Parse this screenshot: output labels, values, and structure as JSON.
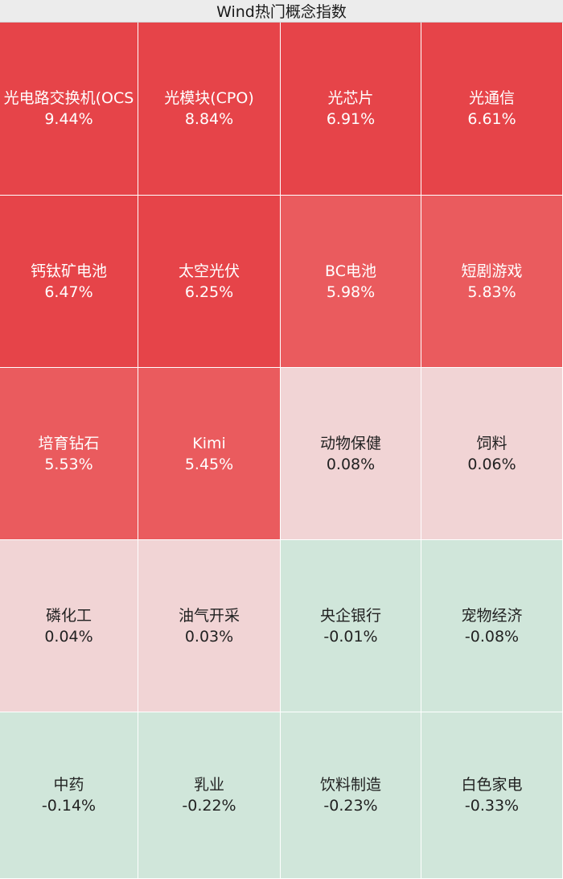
{
  "chart_data": {
    "type": "heatmap",
    "title": "Wind热门概念指数",
    "columns": 4,
    "cells": [
      {
        "name": "光电路交换机(OCS",
        "value": 9.44,
        "label": "9.44%"
      },
      {
        "name": "光模块(CPO)",
        "value": 8.84,
        "label": "8.84%"
      },
      {
        "name": "光芯片",
        "value": 6.91,
        "label": "6.91%"
      },
      {
        "name": "光通信",
        "value": 6.61,
        "label": "6.61%"
      },
      {
        "name": "钙钛矿电池",
        "value": 6.47,
        "label": "6.47%"
      },
      {
        "name": "太空光伏",
        "value": 6.25,
        "label": "6.25%"
      },
      {
        "name": "BC电池",
        "value": 5.98,
        "label": "5.98%"
      },
      {
        "name": "短剧游戏",
        "value": 5.83,
        "label": "5.83%"
      },
      {
        "name": "培育钻石",
        "value": 5.53,
        "label": "5.53%"
      },
      {
        "name": "Kimi",
        "value": 5.45,
        "label": "5.45%"
      },
      {
        "name": "动物保健",
        "value": 0.08,
        "label": "0.08%"
      },
      {
        "name": "饲料",
        "value": 0.06,
        "label": "0.06%"
      },
      {
        "name": "磷化工",
        "value": 0.04,
        "label": "0.04%"
      },
      {
        "name": "油气开采",
        "value": 0.03,
        "label": "0.03%"
      },
      {
        "name": "央企银行",
        "value": -0.01,
        "label": "-0.01%"
      },
      {
        "name": "宠物经济",
        "value": -0.08,
        "label": "-0.08%"
      },
      {
        "name": "中药",
        "value": -0.14,
        "label": "-0.14%"
      },
      {
        "name": "乳业",
        "value": -0.22,
        "label": "-0.22%"
      },
      {
        "name": "饮料制造",
        "value": -0.23,
        "label": "-0.23%"
      },
      {
        "name": "白色家电",
        "value": -0.33,
        "label": "-0.33%"
      }
    ],
    "colors": {
      "strong_up": "#e64449",
      "mid_up": "#ea5b5e",
      "slight_up": "#f1d4d5",
      "slight_down": "#d0e6da"
    }
  }
}
